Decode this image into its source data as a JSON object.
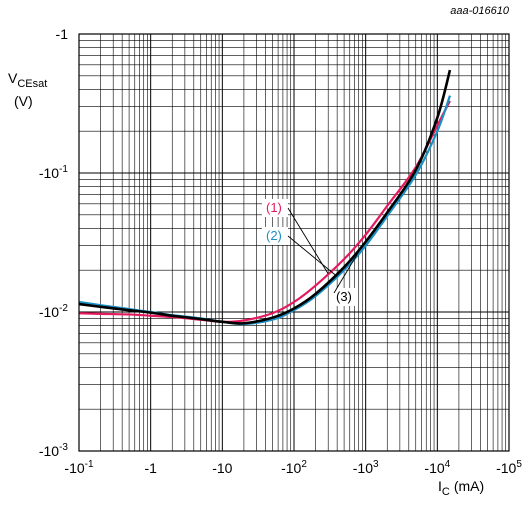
{
  "chart_data": {
    "type": "line",
    "figure_id": "aaa-016610",
    "title": "",
    "xlabel": {
      "main": "I",
      "sub": "C",
      "unit": "(mA)"
    },
    "ylabel": {
      "main": "V",
      "sub": "CEsat",
      "unit": "(V)"
    },
    "x_scale": "log",
    "y_scale": "log",
    "xlim": [
      -0.1,
      -100000
    ],
    "ylim": [
      -0.001,
      -1
    ],
    "grid": true,
    "x_ticks": [
      {
        "base": "-10",
        "exp": "-1"
      },
      {
        "base": "-1",
        "exp": ""
      },
      {
        "base": "-10",
        "exp": ""
      },
      {
        "base": "-10",
        "exp": "2"
      },
      {
        "base": "-10",
        "exp": "3"
      },
      {
        "base": "-10",
        "exp": "4"
      },
      {
        "base": "-10",
        "exp": "5"
      }
    ],
    "y_ticks": [
      {
        "base": "-10",
        "exp": "-3"
      },
      {
        "base": "-10",
        "exp": "-2"
      },
      {
        "base": "-10",
        "exp": "-1"
      },
      {
        "base": "-1",
        "exp": ""
      }
    ],
    "series": [
      {
        "name": "(1)",
        "color": "#e5195e",
        "x": [
          -0.1,
          -0.2,
          -0.5,
          -1,
          -2,
          -5,
          -10,
          -20,
          -50,
          -100,
          -200,
          -500,
          -1000,
          -2000,
          -5000,
          -10000,
          -15000
        ],
        "y": [
          -0.0098,
          -0.0097,
          -0.0096,
          -0.0094,
          -0.0092,
          -0.0088,
          -0.0085,
          -0.0087,
          -0.0098,
          -0.0118,
          -0.0155,
          -0.024,
          -0.036,
          -0.058,
          -0.11,
          -0.22,
          -0.33
        ]
      },
      {
        "name": "(2)",
        "color": "#1a8fc4",
        "x": [
          -0.1,
          -0.2,
          -0.5,
          -1,
          -2,
          -5,
          -10,
          -20,
          -50,
          -100,
          -200,
          -500,
          -1000,
          -2000,
          -5000,
          -10000,
          -15000
        ],
        "y": [
          -0.0118,
          -0.0112,
          -0.0105,
          -0.01,
          -0.0095,
          -0.009,
          -0.0085,
          -0.0082,
          -0.0088,
          -0.0103,
          -0.013,
          -0.02,
          -0.03,
          -0.049,
          -0.097,
          -0.2,
          -0.36
        ]
      },
      {
        "name": "(3)",
        "color": "#000000",
        "x": [
          -0.1,
          -0.2,
          -0.5,
          -1,
          -2,
          -5,
          -10,
          -20,
          -50,
          -100,
          -200,
          -500,
          -1000,
          -2000,
          -5000,
          -10000,
          -15000
        ],
        "y": [
          -0.0114,
          -0.0109,
          -0.0103,
          -0.0099,
          -0.0094,
          -0.0089,
          -0.0085,
          -0.0083,
          -0.0091,
          -0.0106,
          -0.0135,
          -0.021,
          -0.032,
          -0.052,
          -0.105,
          -0.25,
          -0.55
        ]
      }
    ],
    "annotations": [
      {
        "text": "(1)",
        "series": 0,
        "at_x": -300
      },
      {
        "text": "(2)",
        "series": 1,
        "at_x": -400
      },
      {
        "text": "(3)",
        "series": 2,
        "at_x": -900
      }
    ]
  }
}
